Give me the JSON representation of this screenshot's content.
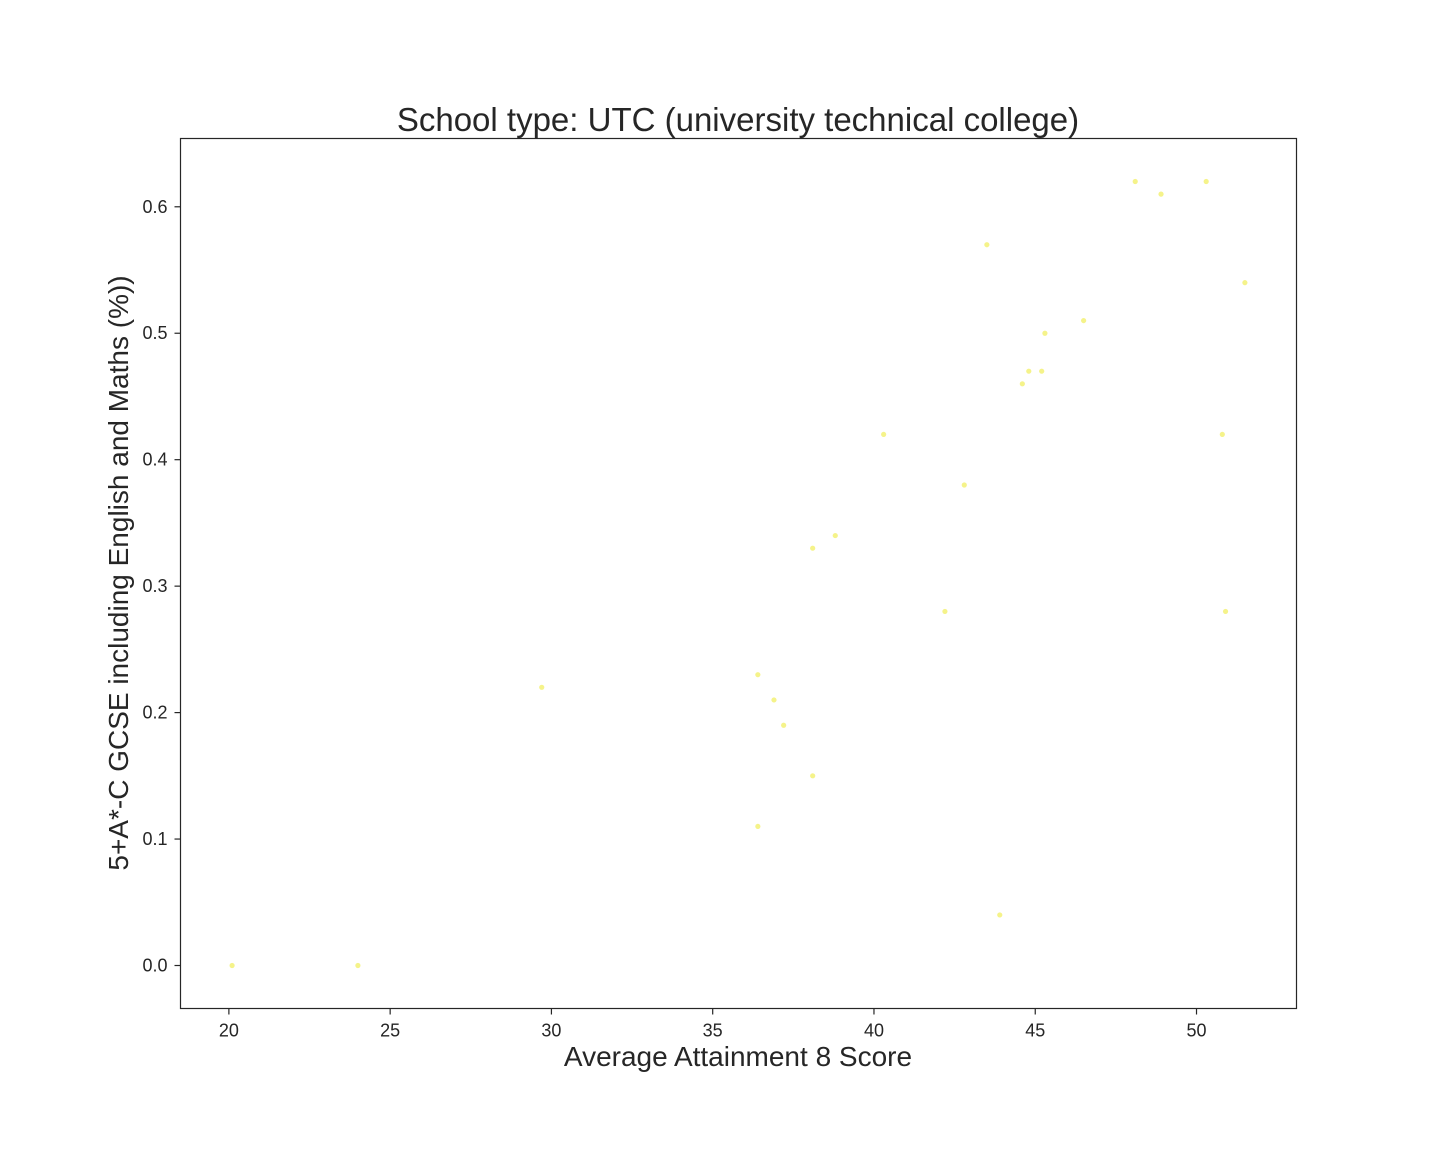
{
  "chart_data": {
    "type": "scatter",
    "title": "School type: UTC (university technical college)",
    "xlabel": "Average Attainment 8 Score",
    "ylabel": "5+A*-C GCSE including English and Maths (%))",
    "xlim": [
      18.5,
      53.1
    ],
    "ylim": [
      -0.034,
      0.654
    ],
    "xticks": [
      20,
      25,
      30,
      35,
      40,
      45,
      50
    ],
    "xtick_labels": [
      "20",
      "25",
      "30",
      "35",
      "40",
      "45",
      "50"
    ],
    "yticks": [
      0.0,
      0.1,
      0.2,
      0.3,
      0.4,
      0.5,
      0.6
    ],
    "ytick_labels": [
      "0.0",
      "0.1",
      "0.2",
      "0.3",
      "0.4",
      "0.5",
      "0.6"
    ],
    "grid": false,
    "marker_color": "#f5f38a",
    "points": [
      {
        "x": 20.1,
        "y": 0.0
      },
      {
        "x": 24.0,
        "y": 0.0
      },
      {
        "x": 29.7,
        "y": 0.22
      },
      {
        "x": 36.4,
        "y": 0.23
      },
      {
        "x": 36.4,
        "y": 0.11
      },
      {
        "x": 36.9,
        "y": 0.21
      },
      {
        "x": 37.2,
        "y": 0.19
      },
      {
        "x": 38.1,
        "y": 0.33
      },
      {
        "x": 38.1,
        "y": 0.15
      },
      {
        "x": 38.8,
        "y": 0.34
      },
      {
        "x": 40.3,
        "y": 0.42
      },
      {
        "x": 42.2,
        "y": 0.28
      },
      {
        "x": 42.8,
        "y": 0.38
      },
      {
        "x": 43.5,
        "y": 0.57
      },
      {
        "x": 43.9,
        "y": 0.04
      },
      {
        "x": 44.6,
        "y": 0.46
      },
      {
        "x": 44.8,
        "y": 0.47
      },
      {
        "x": 45.2,
        "y": 0.47
      },
      {
        "x": 45.3,
        "y": 0.5
      },
      {
        "x": 46.5,
        "y": 0.51
      },
      {
        "x": 48.1,
        "y": 0.62
      },
      {
        "x": 48.9,
        "y": 0.61
      },
      {
        "x": 50.3,
        "y": 0.62
      },
      {
        "x": 50.8,
        "y": 0.42
      },
      {
        "x": 50.9,
        "y": 0.28
      },
      {
        "x": 51.5,
        "y": 0.54
      }
    ]
  }
}
